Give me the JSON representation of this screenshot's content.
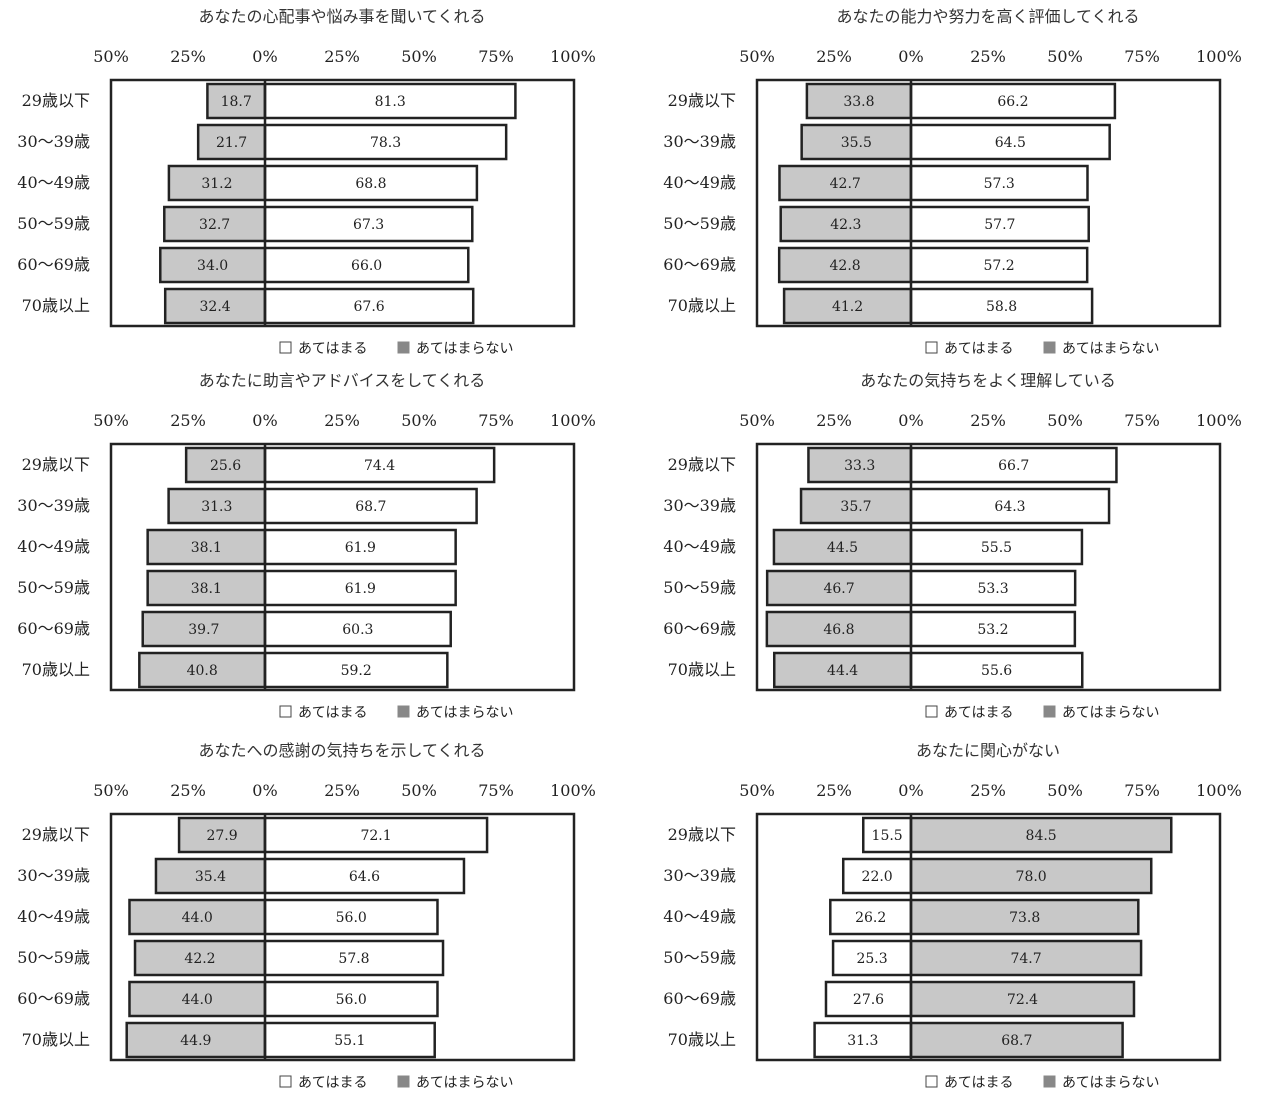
{
  "legend": {
    "applies": "あてはまる",
    "not_applies": "あてはまらない"
  },
  "colors": {
    "applies": "#ffffff",
    "not_applies": "#c8c8c8",
    "stroke": "#222222"
  },
  "chart_data": [
    {
      "type": "bar",
      "title": "あなたの心配事や悩み事を聞いてくれる",
      "categories": [
        "29歳以下",
        "30〜39歳",
        "40〜49歳",
        "50〜59歳",
        "60〜69歳",
        "70歳以上"
      ],
      "tick_labels": [
        "50%",
        "25%",
        "0%",
        "25%",
        "50%",
        "75%",
        "100%"
      ],
      "xlim": [
        -50,
        100
      ],
      "left_series": "あてはまらない",
      "right_series": "あてはまる",
      "left_values": [
        18.7,
        21.7,
        31.2,
        32.7,
        34.0,
        32.4
      ],
      "right_values": [
        81.3,
        78.3,
        68.8,
        67.3,
        66.0,
        67.6
      ]
    },
    {
      "type": "bar",
      "title": "あなたの能力や努力を高く評価してくれる",
      "categories": [
        "29歳以下",
        "30〜39歳",
        "40〜49歳",
        "50〜59歳",
        "60〜69歳",
        "70歳以上"
      ],
      "tick_labels": [
        "50%",
        "25%",
        "0%",
        "25%",
        "50%",
        "75%",
        "100%"
      ],
      "xlim": [
        -50,
        100
      ],
      "left_series": "あてはまらない",
      "right_series": "あてはまる",
      "left_values": [
        33.8,
        35.5,
        42.7,
        42.3,
        42.8,
        41.2
      ],
      "right_values": [
        66.2,
        64.5,
        57.3,
        57.7,
        57.2,
        58.8
      ]
    },
    {
      "type": "bar",
      "title": "あなたに助言やアドバイスをしてくれる",
      "categories": [
        "29歳以下",
        "30〜39歳",
        "40〜49歳",
        "50〜59歳",
        "60〜69歳",
        "70歳以上"
      ],
      "tick_labels": [
        "50%",
        "25%",
        "0%",
        "25%",
        "50%",
        "75%",
        "100%"
      ],
      "xlim": [
        -50,
        100
      ],
      "left_series": "あてはまらない",
      "right_series": "あてはまる",
      "left_values": [
        25.6,
        31.3,
        38.1,
        38.1,
        39.7,
        40.8
      ],
      "right_values": [
        74.4,
        68.7,
        61.9,
        61.9,
        60.3,
        59.2
      ]
    },
    {
      "type": "bar",
      "title": "あなたの気持ちをよく理解している",
      "categories": [
        "29歳以下",
        "30〜39歳",
        "40〜49歳",
        "50〜59歳",
        "60〜69歳",
        "70歳以上"
      ],
      "tick_labels": [
        "50%",
        "25%",
        "0%",
        "25%",
        "50%",
        "75%",
        "100%"
      ],
      "xlim": [
        -50,
        100
      ],
      "left_series": "あてはまらない",
      "right_series": "あてはまる",
      "left_values": [
        33.3,
        35.7,
        44.5,
        46.7,
        46.8,
        44.4
      ],
      "right_values": [
        66.7,
        64.3,
        55.5,
        53.3,
        53.2,
        55.6
      ]
    },
    {
      "type": "bar",
      "title": "あなたへの感謝の気持ちを示してくれる",
      "categories": [
        "29歳以下",
        "30〜39歳",
        "40〜49歳",
        "50〜59歳",
        "60〜69歳",
        "70歳以上"
      ],
      "tick_labels": [
        "50%",
        "25%",
        "0%",
        "25%",
        "50%",
        "75%",
        "100%"
      ],
      "xlim": [
        -50,
        100
      ],
      "left_series": "あてはまらない",
      "right_series": "あてはまる",
      "left_values": [
        27.9,
        35.4,
        44.0,
        42.2,
        44.0,
        44.9
      ],
      "right_values": [
        72.1,
        64.6,
        56.0,
        57.8,
        56.0,
        55.1
      ]
    },
    {
      "type": "bar",
      "title": "あなたに関心がない",
      "categories": [
        "29歳以下",
        "30〜39歳",
        "40〜49歳",
        "50〜59歳",
        "60〜69歳",
        "70歳以上"
      ],
      "tick_labels": [
        "50%",
        "25%",
        "0%",
        "25%",
        "50%",
        "75%",
        "100%"
      ],
      "xlim": [
        -50,
        100
      ],
      "left_series": "あてはまる",
      "right_series": "あてはまらない",
      "left_values": [
        15.5,
        22.0,
        26.2,
        25.3,
        27.6,
        31.3
      ],
      "right_values": [
        84.5,
        78.0,
        73.8,
        74.7,
        72.4,
        68.7
      ]
    }
  ]
}
